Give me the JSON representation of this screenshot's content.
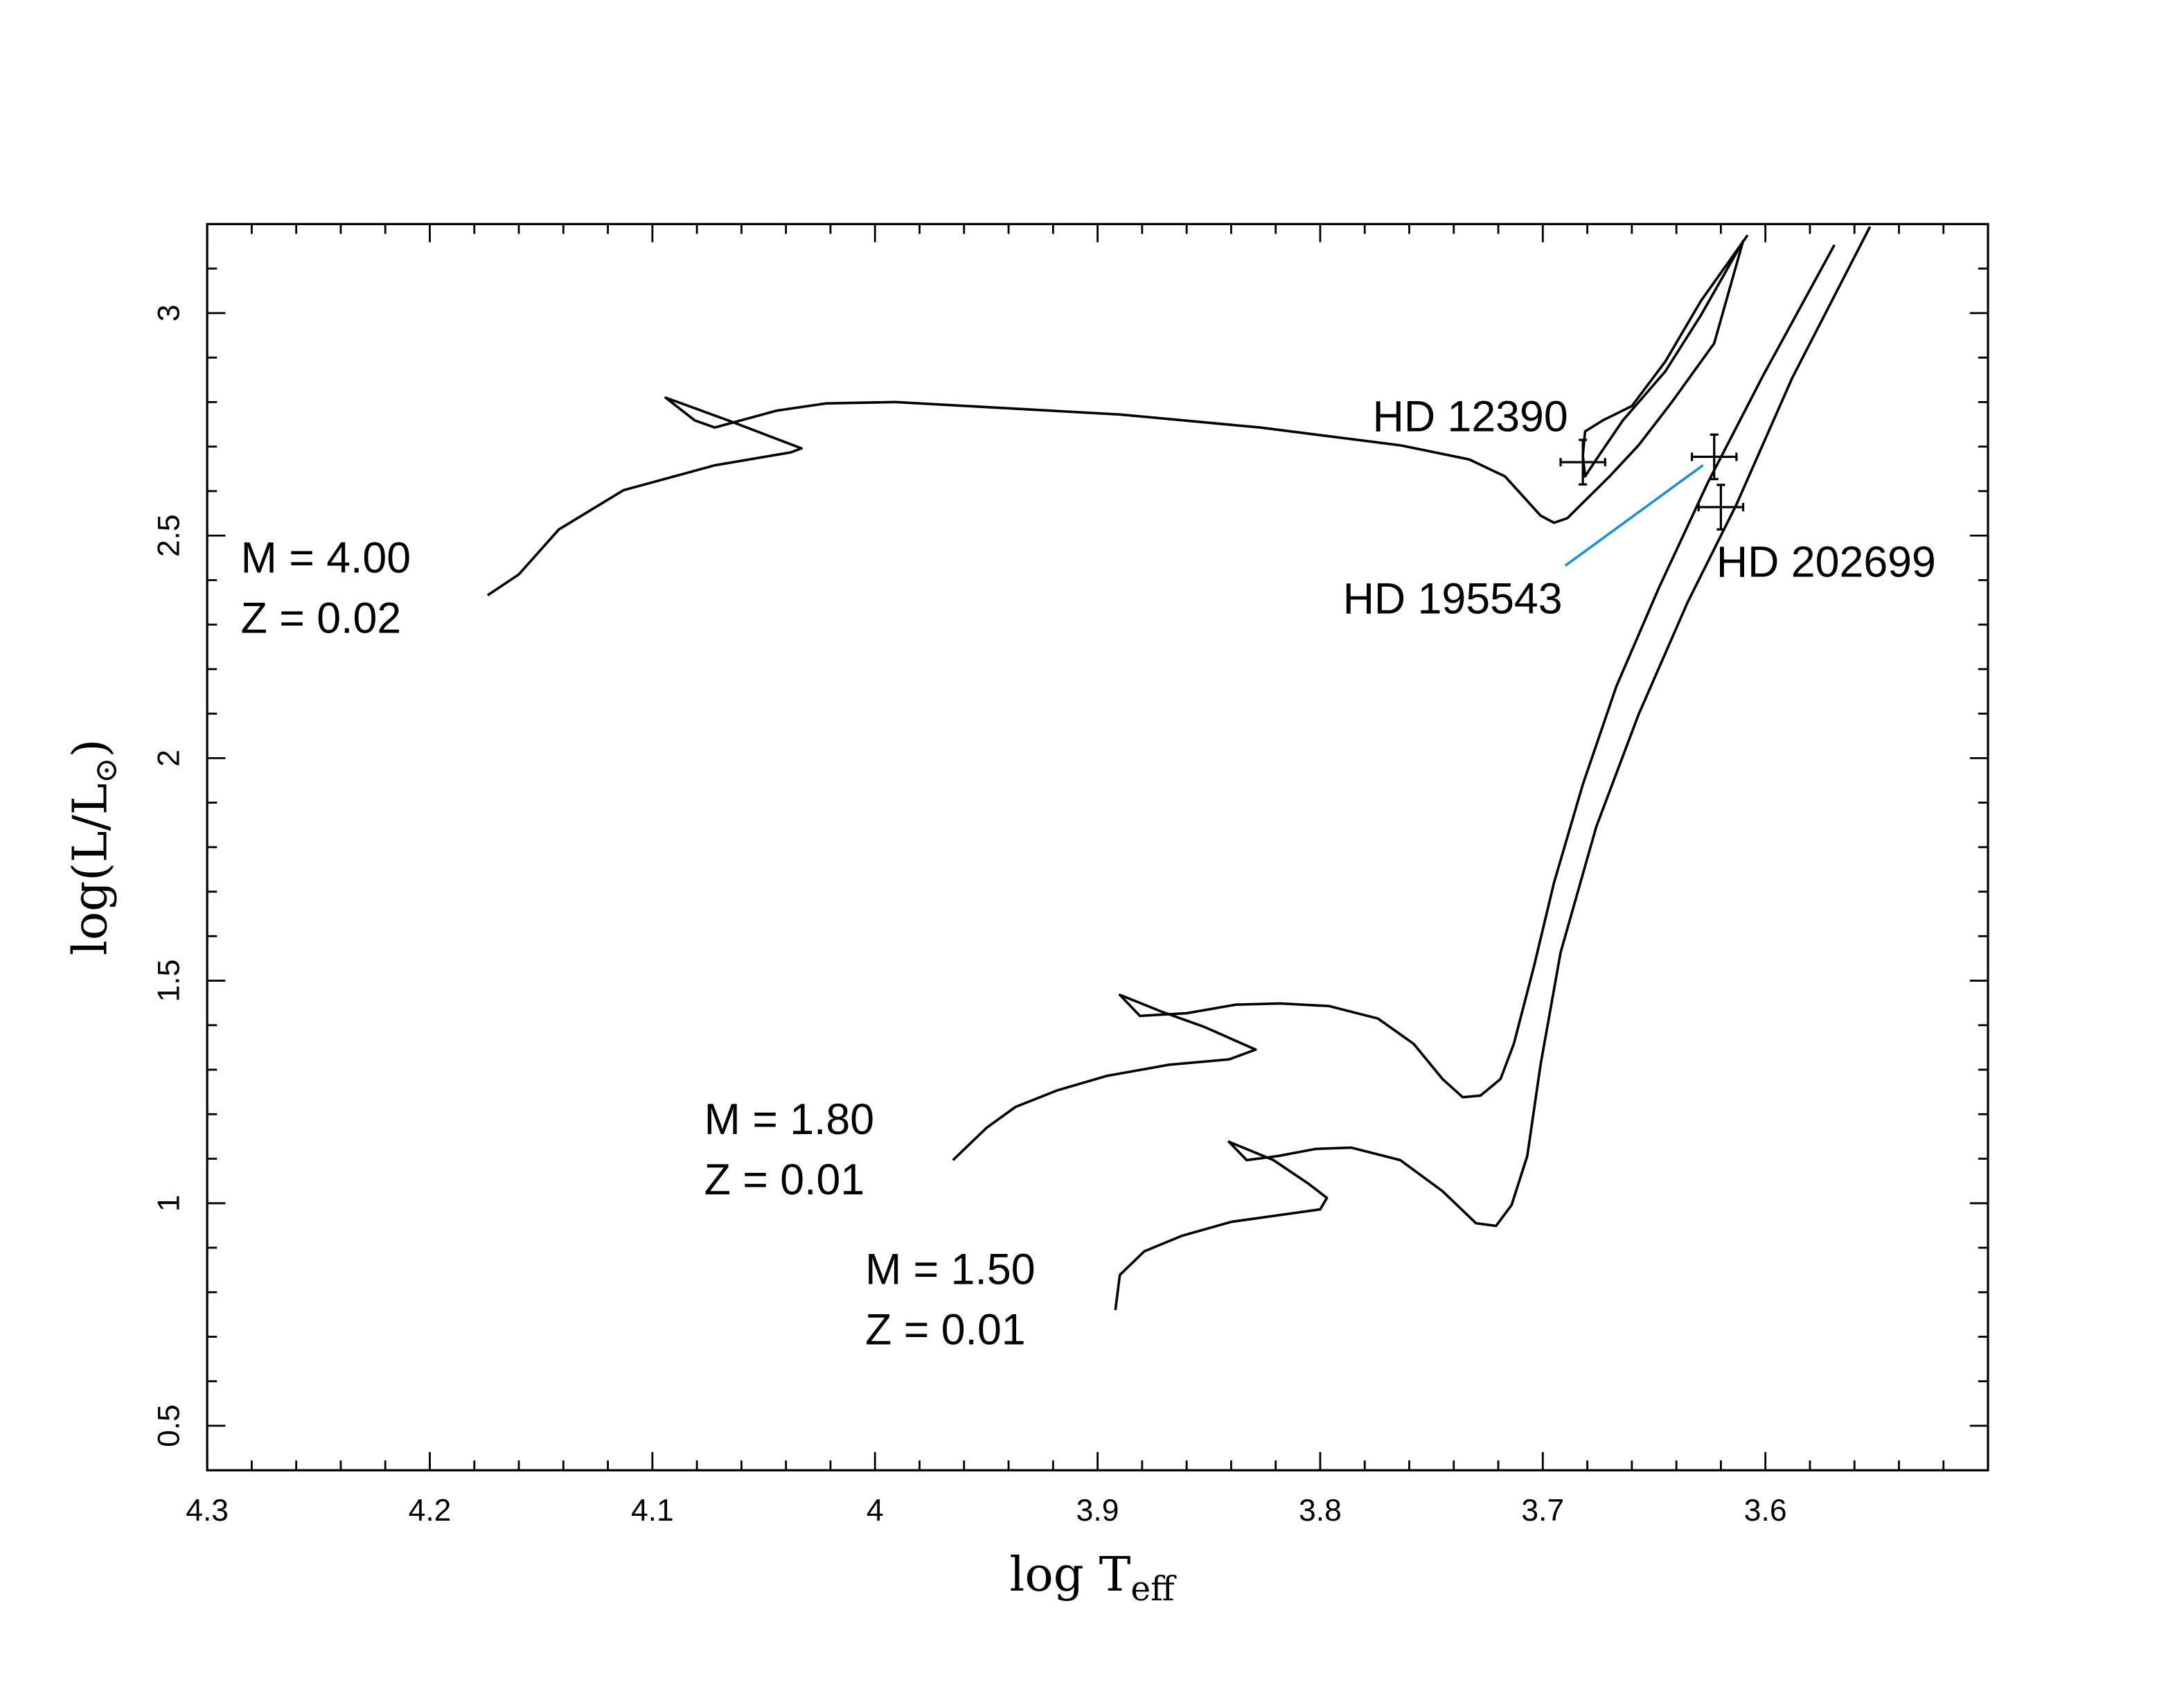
{
  "chart_data": {
    "type": "line",
    "xlabel": {
      "main": "log T",
      "sub": "eff"
    },
    "ylabel": {
      "main": "log(L/L",
      "sub": "⊙",
      "end": ")"
    },
    "xlim": [
      4.3,
      3.5
    ],
    "ylim": [
      0.4,
      3.2
    ],
    "xticks": [
      4.3,
      4.2,
      4.1,
      4,
      3.9,
      3.8,
      3.7,
      3.6
    ],
    "yticks": [
      0.5,
      1,
      1.5,
      2,
      2.5,
      3
    ],
    "xminor": [
      4.28,
      4.26,
      4.24,
      4.22,
      4.18,
      4.16,
      4.14,
      4.12,
      4.08,
      4.06,
      4.04,
      4.02,
      3.98,
      3.96,
      3.94,
      3.92,
      3.88,
      3.86,
      3.84,
      3.82,
      3.78,
      3.76,
      3.74,
      3.72,
      3.68,
      3.66,
      3.64,
      3.62,
      3.58,
      3.56,
      3.54,
      3.52
    ],
    "yminor": [
      0.6,
      0.7,
      0.8,
      0.9,
      1.1,
      1.2,
      1.3,
      1.4,
      1.6,
      1.7,
      1.8,
      1.9,
      2.1,
      2.2,
      2.3,
      2.4,
      2.6,
      2.7,
      2.8,
      2.9,
      3.1
    ],
    "series": [
      {
        "name": [
          "M = 4.00",
          "Z = 0.02"
        ],
        "color": "#000000",
        "x": [
          4.174,
          4.16,
          4.142,
          4.113,
          4.072,
          4.038,
          4.033,
          4.066,
          4.094,
          4.081,
          4.072,
          4.044,
          4.022,
          3.991,
          3.89,
          3.827,
          3.764,
          3.733,
          3.717,
          3.701,
          3.695,
          3.689,
          3.67,
          3.657,
          3.642,
          3.623,
          3.61,
          3.629,
          3.645,
          3.664,
          3.676,
          3.681,
          3.682,
          3.681,
          3.673,
          3.66,
          3.645,
          3.629,
          3.608
        ],
        "y": [
          2.366,
          2.413,
          2.514,
          2.602,
          2.658,
          2.687,
          2.696,
          2.759,
          2.81,
          2.759,
          2.743,
          2.781,
          2.797,
          2.8,
          2.772,
          2.743,
          2.703,
          2.671,
          2.633,
          2.545,
          2.529,
          2.539,
          2.633,
          2.703,
          2.8,
          2.932,
          3.162,
          2.995,
          2.869,
          2.759,
          2.671,
          2.633,
          2.68,
          2.734,
          2.759,
          2.791,
          2.891,
          3.027,
          3.175
        ]
      },
      {
        "name": [
          "M = 1.80",
          "Z = 0.01"
        ],
        "color": "#000000",
        "x": [
          3.965,
          3.95,
          3.937,
          3.918,
          3.896,
          3.868,
          3.841,
          3.829,
          3.852,
          3.871,
          3.89,
          3.881,
          3.86,
          3.838,
          3.818,
          3.796,
          3.774,
          3.758,
          3.745,
          3.736,
          3.728,
          3.719,
          3.713,
          3.704,
          3.695,
          3.682,
          3.667,
          3.648,
          3.626,
          3.601,
          3.569
        ],
        "y": [
          1.097,
          1.169,
          1.216,
          1.254,
          1.286,
          1.311,
          1.323,
          1.345,
          1.396,
          1.43,
          1.468,
          1.421,
          1.427,
          1.446,
          1.449,
          1.443,
          1.415,
          1.358,
          1.279,
          1.238,
          1.242,
          1.279,
          1.358,
          1.531,
          1.72,
          1.941,
          2.161,
          2.381,
          2.618,
          2.86,
          3.153
        ]
      },
      {
        "name": [
          "M = 1.50",
          "Z = 0.01"
        ],
        "color": "#000000",
        "x": [
          3.892,
          3.89,
          3.879,
          3.862,
          3.84,
          3.8,
          3.797,
          3.805,
          3.821,
          3.841,
          3.833,
          3.819,
          3.802,
          3.786,
          3.764,
          3.745,
          3.73,
          3.721,
          3.714,
          3.707,
          3.701,
          3.692,
          3.676,
          3.657,
          3.635,
          3.613,
          3.588,
          3.553
        ],
        "y": [
          0.76,
          0.839,
          0.892,
          0.927,
          0.958,
          0.986,
          1.012,
          1.043,
          1.097,
          1.138,
          1.097,
          1.106,
          1.122,
          1.125,
          1.097,
          1.027,
          0.955,
          0.949,
          0.996,
          1.106,
          1.311,
          1.563,
          1.846,
          2.098,
          2.35,
          2.57,
          2.854,
          3.194
        ]
      }
    ],
    "points": [
      {
        "name": "HD 12390",
        "x": 3.682,
        "y": 2.665,
        "xerr": 0.01,
        "yerr": 0.05
      },
      {
        "name": "HD 195543",
        "x": 3.623,
        "y": 2.677,
        "xerr": 0.01,
        "yerr": 0.05,
        "leader_color": "#1f8fd0"
      },
      {
        "name": "HD 202699",
        "x": 3.62,
        "y": 2.564,
        "xerr": 0.01,
        "yerr": 0.05
      }
    ]
  }
}
